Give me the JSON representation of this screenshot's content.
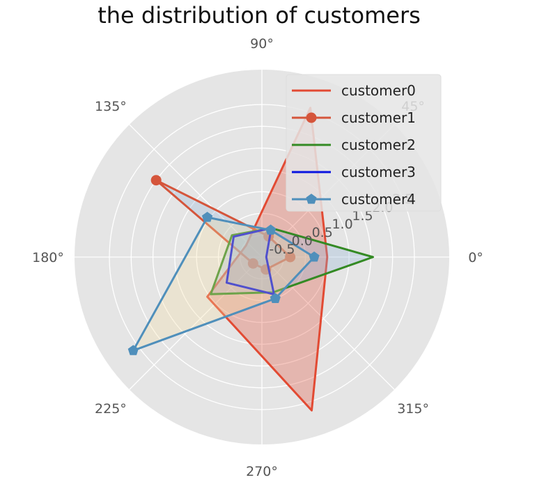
{
  "chart_data": {
    "type": "radar",
    "title": "the distribution of customers",
    "theta_ticks_deg": [
      0,
      45,
      90,
      135,
      180,
      225,
      270,
      315
    ],
    "theta_tick_labels": [
      "0°",
      "45°",
      "90°",
      "135°",
      "180°",
      "225°",
      "270°",
      "315°"
    ],
    "r_ticks": [
      -0.5,
      0.0,
      0.5,
      1.0,
      1.5,
      2.0,
      2.5
    ],
    "r_tick_labels": [
      "-0.5",
      "0.0",
      "0.5",
      "1.0",
      "1.5",
      "2.0",
      "2.5"
    ],
    "r_lim": [
      -1.0,
      3.3
    ],
    "r_tick_label_angle_deg": 22.5,
    "grid": true,
    "legend_position": "top-right",
    "axis_angles_deg": [
      0,
      72,
      144,
      216,
      288
    ],
    "series": [
      {
        "name": "customer0",
        "color": "#e24a33",
        "fill": "#e24a33",
        "marker": "none",
        "values": [
          0.5,
          2.6,
          -0.55,
          0.55,
          2.7
        ]
      },
      {
        "name": "customer1",
        "color": "#d5553b",
        "fill": "#8eb4d8",
        "marker": "circle",
        "values": [
          -0.35,
          -0.5,
          2.0,
          -0.75,
          -0.7
        ]
      },
      {
        "name": "customer2",
        "color": "#348a24",
        "fill": "#8eb4d8",
        "marker": "none",
        "values": [
          1.55,
          -0.3,
          -0.15,
          0.45,
          -0.15
        ]
      },
      {
        "name": "customer3",
        "color": "#0a14e0",
        "fill": "#8eb4d8",
        "marker": "none",
        "values": [
          -0.9,
          -0.3,
          -0.2,
          0.0,
          -0.1
        ]
      },
      {
        "name": "customer4",
        "color": "#4f8fbb",
        "fill": "#f5dea2",
        "marker": "pentagon",
        "values": [
          0.2,
          -0.35,
          0.55,
          2.65,
          0.0
        ]
      }
    ]
  }
}
